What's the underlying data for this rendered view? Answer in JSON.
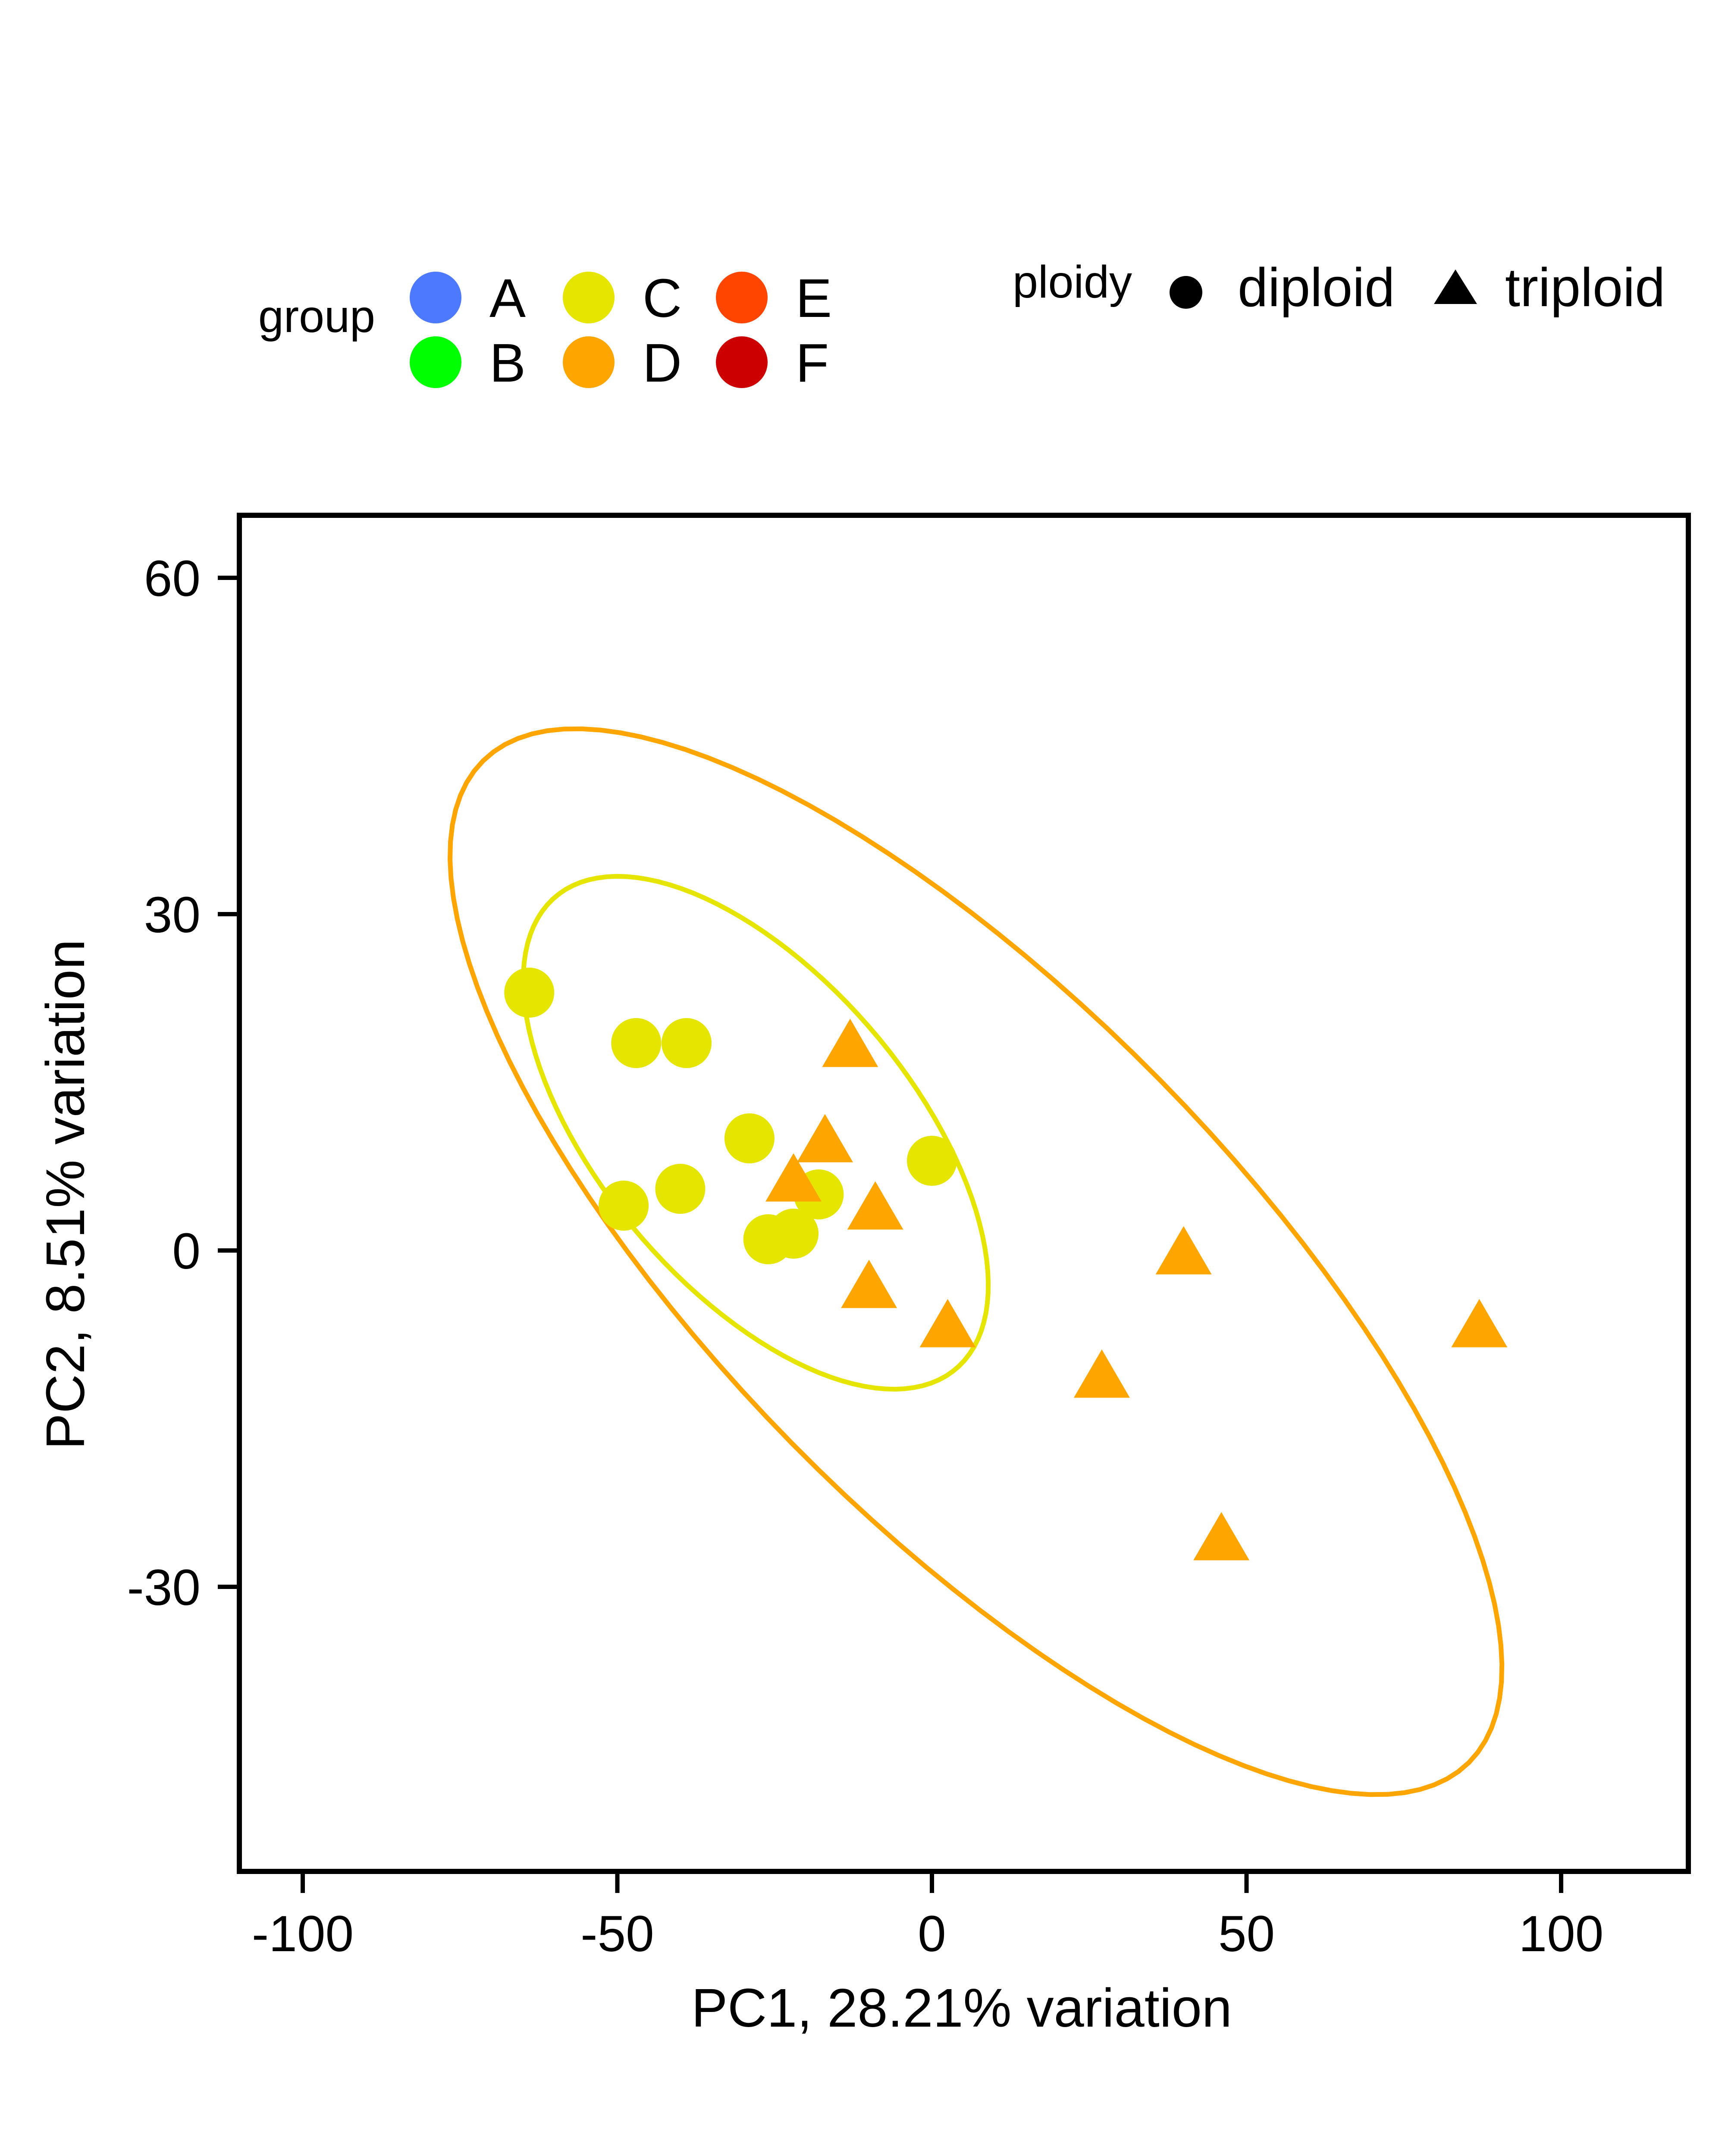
{
  "chart_data": {
    "type": "scatter",
    "title": "",
    "xlabel": "PC1, 28.21% variation",
    "ylabel": "PC2, 8.51% variation",
    "xlim": [
      -110,
      120
    ],
    "ylim": [
      -55,
      66
    ],
    "xticks": [
      -100,
      -50,
      0,
      50,
      100
    ],
    "yticks": [
      -30,
      0,
      30,
      60
    ],
    "grid": false,
    "legend": {
      "placement": "top",
      "group_title": "group",
      "groups": [
        {
          "label": "A",
          "color": "#4D79FF"
        },
        {
          "label": "B",
          "color": "#00FF00"
        },
        {
          "label": "C",
          "color": "#E5E500"
        },
        {
          "label": "D",
          "color": "#FFA500"
        },
        {
          "label": "E",
          "color": "#FF4500"
        },
        {
          "label": "F",
          "color": "#CC0000"
        }
      ],
      "ploidy_title": "ploidy",
      "ploidy": [
        {
          "label": "diploid",
          "shape": "circle"
        },
        {
          "label": "triploid",
          "shape": "triangle"
        }
      ]
    },
    "series": [
      {
        "name": "C",
        "color": "#E5E500",
        "shape": "circle",
        "points": [
          [
            -64,
            23
          ],
          [
            -47,
            18.5
          ],
          [
            -39,
            18.5
          ],
          [
            -29,
            10
          ],
          [
            -40,
            5.5
          ],
          [
            -49,
            4
          ],
          [
            -26,
            1
          ],
          [
            -22,
            1.5
          ],
          [
            -18,
            5
          ],
          [
            0,
            8
          ]
        ]
      },
      {
        "name": "D",
        "color": "#FFA500",
        "shape": "triangle",
        "points": [
          [
            -13,
            18
          ],
          [
            -17,
            9.5
          ],
          [
            -22,
            6
          ],
          [
            -9,
            3.5
          ],
          [
            -10,
            -3.5
          ],
          [
            2.5,
            -7
          ],
          [
            27,
            -11.5
          ],
          [
            40,
            -0.5
          ],
          [
            46,
            -26
          ],
          [
            87,
            -7
          ]
        ]
      }
    ],
    "ellipses": [
      {
        "group": "C",
        "color": "#E5E500",
        "cx": -28,
        "cy": 10.5,
        "rx": 40,
        "ry": 17,
        "angle_deg": -25
      },
      {
        "group": "D",
        "color": "#FFA500",
        "cx": 7,
        "cy": -1,
        "rx": 92,
        "ry": 28,
        "angle_deg": -26
      }
    ]
  }
}
